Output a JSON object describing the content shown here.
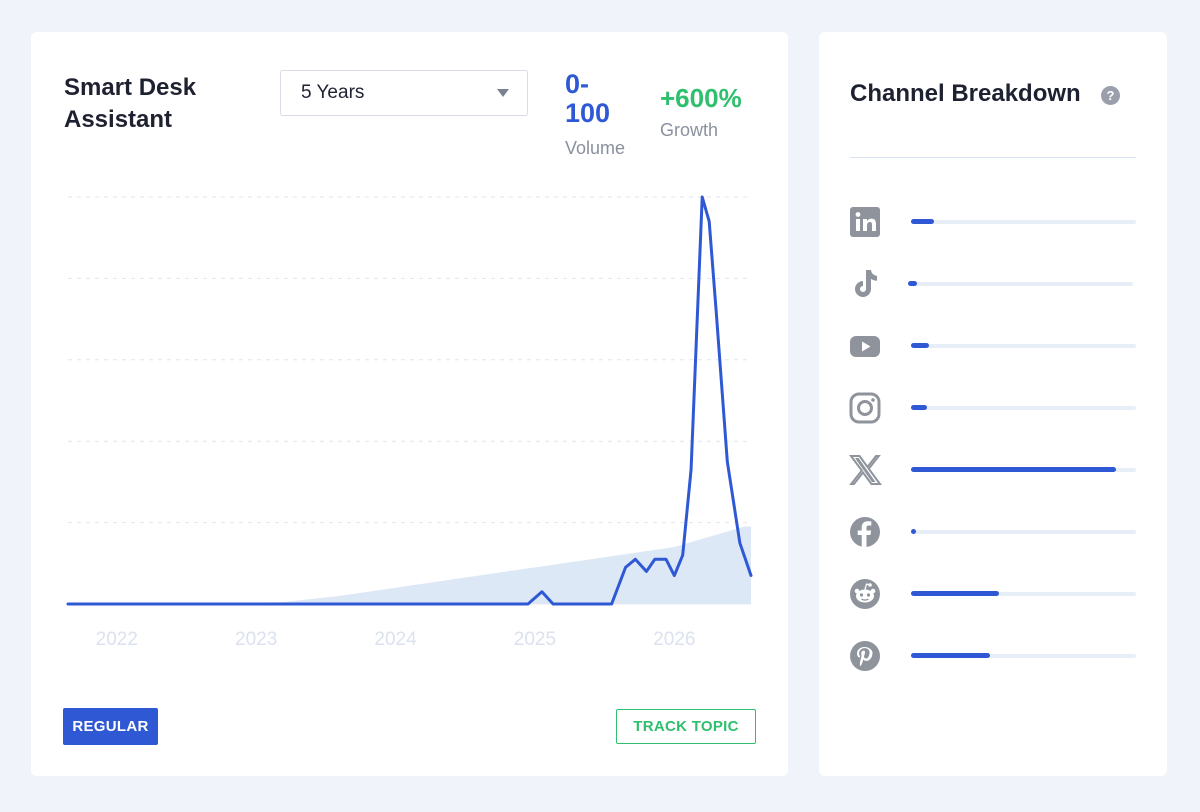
{
  "topic": {
    "title": "Smart Desk Assistant",
    "timeframe": "5 Years",
    "volume_value": "0-100",
    "volume_label": "Volume",
    "growth_value": "+600%",
    "growth_label": "Growth"
  },
  "buttons": {
    "regular": "REGULAR",
    "track": "TRACK TOPIC"
  },
  "channels": {
    "title": "Channel Breakdown",
    "help": "?",
    "items": [
      {
        "name": "LinkedIn",
        "icon": "linkedin-icon",
        "share": 0.1
      },
      {
        "name": "TikTok",
        "icon": "tiktok-icon",
        "share": 0.04
      },
      {
        "name": "YouTube",
        "icon": "youtube-icon",
        "share": 0.08
      },
      {
        "name": "Instagram",
        "icon": "instagram-icon",
        "share": 0.07
      },
      {
        "name": "X",
        "icon": "x-icon",
        "share": 0.91
      },
      {
        "name": "Facebook",
        "icon": "facebook-icon",
        "share": 0.02
      },
      {
        "name": "Reddit",
        "icon": "reddit-icon",
        "share": 0.39
      },
      {
        "name": "Pinterest",
        "icon": "pinterest-icon",
        "share": 0.35
      }
    ]
  },
  "colors": {
    "accent": "#2f59d4",
    "growth": "#2ec06e",
    "trend_fill": "#dde8f6",
    "icon_gray": "#8e939c"
  },
  "chart_data": {
    "type": "line",
    "x_tick_labels": [
      "2022",
      "2023",
      "2024",
      "2025",
      "2026"
    ],
    "x_ticks": [
      2022,
      2023,
      2024,
      2025,
      2026
    ],
    "xlim": [
      2021.65,
      2026.55
    ],
    "ylim": [
      0,
      100
    ],
    "grid": true,
    "series": [
      {
        "x": [
          2021.65,
          2024.0,
          2024.95,
          2025.05,
          2025.13,
          2025.55,
          2025.65,
          2025.72,
          2025.8,
          2025.86,
          2025.94,
          2026.0,
          2026.06,
          2026.12,
          2026.2,
          2026.25,
          2026.3,
          2026.38,
          2026.47,
          2026.55
        ],
        "y": [
          0,
          0,
          0,
          3,
          0,
          0,
          9,
          11,
          8,
          11,
          11,
          7,
          12,
          33,
          100,
          94,
          72,
          35,
          15,
          7
        ]
      },
      {
        "x": [
          2021.65,
          2022.8,
          2023.2,
          2023.6,
          2024.0,
          2024.5,
          2025.0,
          2025.5,
          2026.0,
          2026.5,
          2026.55
        ],
        "y": [
          0,
          0,
          0.5,
          2,
          4,
          6.5,
          9,
          11.5,
          14,
          19,
          19
        ]
      }
    ]
  }
}
